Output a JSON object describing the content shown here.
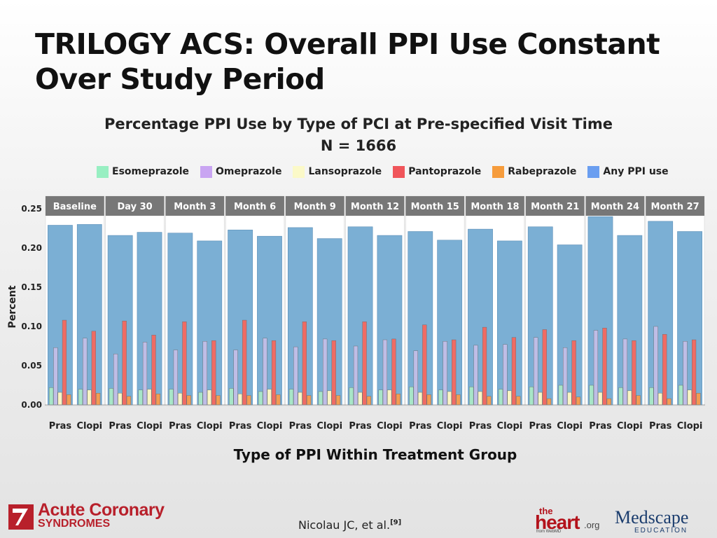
{
  "slide": {
    "title_line1": "TRILOGY ACS: Overall PPI Use Constant",
    "title_line2": "Over Study Period",
    "citation": "Nicolau JC, et al.",
    "citation_ref": "[9]"
  },
  "logos": {
    "acs_line1": "Acute Coronary",
    "acs_line2": "SYNDROMES",
    "heart_small": "the",
    "heart_main": "heart",
    "heart_org": ".org",
    "heart_from": "from WebMD",
    "medscape_main": "Medscape",
    "medscape_sub": "EDUCATION"
  },
  "colors": {
    "any_ppi": "#7bafd4",
    "esomeprazole": "#a8e6c8",
    "omeprazole": "#bfbde6",
    "lansoprazole": "#faf5c4",
    "pantoprazole": "#ef6b64",
    "rabeprazole": "#f39c52",
    "panel_header": "#777777",
    "acs_red": "#b8202b"
  },
  "legend": [
    {
      "label": "Esomeprazole",
      "color": "#98efc2"
    },
    {
      "label": "Omeprazole",
      "color": "#c9a5f2"
    },
    {
      "label": "Lansoprazole",
      "color": "#fbf9c8"
    },
    {
      "label": "Pantoprazole",
      "color": "#f0555a"
    },
    {
      "label": "Rabeprazole",
      "color": "#f69c3c"
    },
    {
      "label": "Any PPI use",
      "color": "#6a9ef0"
    }
  ],
  "chart_data": {
    "type": "bar",
    "title": "Percentage PPI Use by Type of PCI at Pre-specified Visit Time",
    "subtitle": "N = 1666",
    "xlabel": "Type of PPI Within Treatment Group",
    "ylabel": "Percent",
    "ylim": [
      0,
      0.25
    ],
    "yticks": [
      "0.00",
      "0.05",
      "0.10",
      "0.15",
      "0.20",
      "0.25"
    ],
    "grid": false,
    "legend_position": "top",
    "panels": [
      "Baseline",
      "Day 30",
      "Month 3",
      "Month 6",
      "Month 9",
      "Month 12",
      "Month 15",
      "Month 18",
      "Month 21",
      "Month 24",
      "Month 27"
    ],
    "groups": [
      "Pras",
      "Clopi"
    ],
    "series_order": [
      "Esomeprazole",
      "Omeprazole",
      "Lansoprazole",
      "Pantoprazole",
      "Rabeprazole"
    ],
    "any_ppi": [
      [
        0.229,
        0.23
      ],
      [
        0.216,
        0.22
      ],
      [
        0.219,
        0.209
      ],
      [
        0.223,
        0.215
      ],
      [
        0.226,
        0.212
      ],
      [
        0.227,
        0.216
      ],
      [
        0.221,
        0.21
      ],
      [
        0.224,
        0.209
      ],
      [
        0.227,
        0.204
      ],
      [
        0.24,
        0.216
      ],
      [
        0.234,
        0.221
      ]
    ],
    "values": {
      "Esomeprazole": [
        [
          0.022,
          0.02
        ],
        [
          0.021,
          0.019
        ],
        [
          0.02,
          0.016
        ],
        [
          0.021,
          0.017
        ],
        [
          0.02,
          0.017
        ],
        [
          0.022,
          0.019
        ],
        [
          0.023,
          0.019
        ],
        [
          0.023,
          0.02
        ],
        [
          0.023,
          0.025
        ],
        [
          0.025,
          0.022
        ],
        [
          0.022,
          0.025
        ]
      ],
      "Omeprazole": [
        [
          0.073,
          0.085
        ],
        [
          0.065,
          0.08
        ],
        [
          0.07,
          0.081
        ],
        [
          0.07,
          0.085
        ],
        [
          0.074,
          0.084
        ],
        [
          0.075,
          0.083
        ],
        [
          0.069,
          0.081
        ],
        [
          0.076,
          0.077
        ],
        [
          0.086,
          0.073
        ],
        [
          0.095,
          0.084
        ],
        [
          0.1,
          0.081
        ]
      ],
      "Lansoprazole": [
        [
          0.016,
          0.019
        ],
        [
          0.015,
          0.02
        ],
        [
          0.015,
          0.019
        ],
        [
          0.014,
          0.02
        ],
        [
          0.016,
          0.018
        ],
        [
          0.016,
          0.019
        ],
        [
          0.016,
          0.017
        ],
        [
          0.017,
          0.018
        ],
        [
          0.016,
          0.016
        ],
        [
          0.016,
          0.018
        ],
        [
          0.015,
          0.019
        ]
      ],
      "Pantoprazole": [
        [
          0.108,
          0.094
        ],
        [
          0.107,
          0.089
        ],
        [
          0.106,
          0.082
        ],
        [
          0.108,
          0.082
        ],
        [
          0.106,
          0.082
        ],
        [
          0.106,
          0.084
        ],
        [
          0.102,
          0.083
        ],
        [
          0.099,
          0.086
        ],
        [
          0.096,
          0.082
        ],
        [
          0.098,
          0.082
        ],
        [
          0.09,
          0.083
        ]
      ],
      "Rabeprazole": [
        [
          0.013,
          0.015
        ],
        [
          0.011,
          0.014
        ],
        [
          0.012,
          0.012
        ],
        [
          0.012,
          0.013
        ],
        [
          0.012,
          0.012
        ],
        [
          0.011,
          0.014
        ],
        [
          0.013,
          0.013
        ],
        [
          0.011,
          0.011
        ],
        [
          0.008,
          0.01
        ],
        [
          0.008,
          0.012
        ],
        [
          0.008,
          0.015
        ]
      ]
    }
  }
}
